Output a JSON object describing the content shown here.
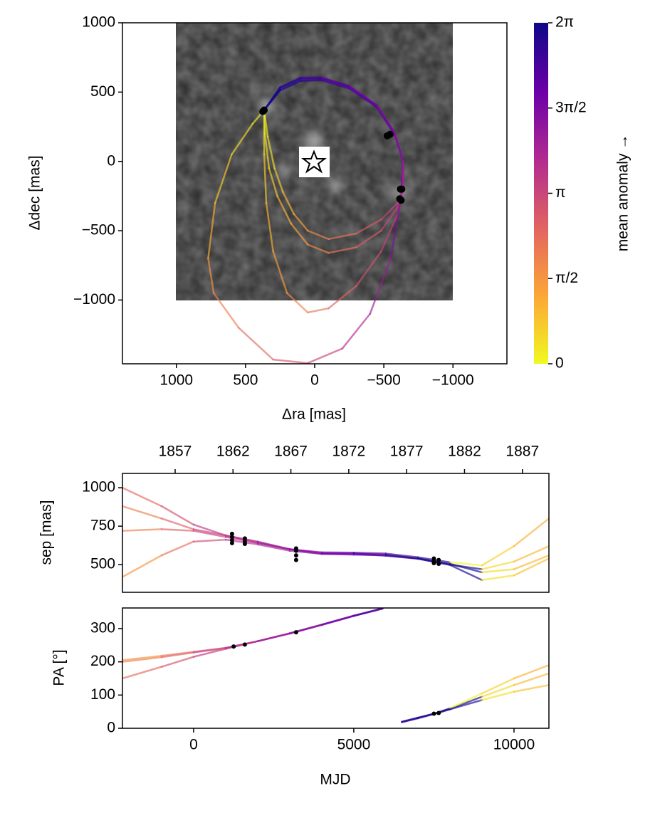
{
  "chart_data": [
    {
      "type": "orbit",
      "xlabel": "Δra [mas]",
      "ylabel": "Δdec [mas]",
      "xlim": [
        1390,
        -1390
      ],
      "ylim": [
        -1460,
        1000
      ],
      "xticks": [
        1000,
        500,
        0,
        {
          "value": -500,
          "label": "−500"
        },
        {
          "value": -1000,
          "label": "−1000"
        }
      ],
      "yticks": [
        {
          "value": -1000,
          "label": "−1000"
        },
        {
          "value": -500,
          "label": "−500"
        },
        0,
        500,
        1000
      ],
      "series": [
        {
          "x": [
            365,
            250,
            100,
            -50,
            -250,
            -450,
            -580,
            -640,
            -640,
            -600,
            -480,
            -300,
            -100,
            50,
            170,
            270,
            330,
            360,
            365
          ],
          "y": [
            370,
            530,
            600,
            600,
            540,
            400,
            200,
            0,
            -200,
            -330,
            -500,
            -620,
            -660,
            -600,
            -450,
            -250,
            -50,
            200,
            370
          ],
          "anomaly": [
            6.2,
            5.9,
            5.6,
            5.3,
            5.0,
            4.7,
            4.4,
            4.0,
            3.6,
            3.2,
            2.7,
            2.2,
            1.8,
            1.4,
            1.0,
            0.7,
            0.4,
            0.15,
            0
          ]
        },
        {
          "x": [
            365,
            250,
            100,
            -50,
            -250,
            -450,
            -580,
            -640,
            -640,
            -600,
            -480,
            -300,
            -100,
            50,
            200,
            300,
            350,
            365,
            365
          ],
          "y": [
            370,
            520,
            590,
            595,
            535,
            395,
            195,
            0,
            -200,
            -380,
            -650,
            -900,
            -1060,
            -1090,
            -950,
            -650,
            -300,
            50,
            370
          ],
          "anomaly": [
            6.2,
            5.9,
            5.6,
            5.3,
            5.0,
            4.7,
            4.4,
            4.0,
            3.6,
            3.3,
            2.9,
            2.5,
            2.2,
            1.9,
            1.5,
            1.1,
            0.7,
            0.3,
            0
          ]
        },
        {
          "x": [
            365,
            250,
            100,
            -50,
            -250,
            -450,
            -580,
            -640,
            -620,
            -550,
            -400,
            -200,
            50,
            300,
            550,
            730,
            770,
            720,
            600,
            450,
            365
          ],
          "y": [
            370,
            510,
            580,
            585,
            525,
            390,
            190,
            0,
            -280,
            -700,
            -1100,
            -1350,
            -1455,
            -1430,
            -1200,
            -950,
            -700,
            -300,
            50,
            270,
            370
          ],
          "anomaly": [
            6.25,
            6.05,
            5.85,
            5.65,
            5.45,
            5.25,
            5.05,
            4.85,
            4.6,
            4.2,
            3.7,
            3.2,
            2.8,
            2.4,
            2.0,
            1.6,
            1.2,
            0.8,
            0.45,
            0.2,
            0.05
          ]
        },
        {
          "x": [
            365,
            250,
            100,
            -50,
            -250,
            -450,
            -580,
            -640,
            -640,
            -600,
            -480,
            -300,
            -100,
            50,
            150,
            230,
            290,
            340,
            365
          ],
          "y": [
            370,
            535,
            605,
            605,
            545,
            405,
            205,
            0,
            -200,
            -300,
            -420,
            -520,
            -560,
            -500,
            -380,
            -220,
            -50,
            180,
            370
          ],
          "anomaly": [
            6.2,
            5.9,
            5.6,
            5.3,
            5.0,
            4.7,
            4.4,
            4.0,
            3.6,
            3.2,
            2.7,
            2.2,
            1.8,
            1.4,
            1.0,
            0.7,
            0.4,
            0.15,
            0
          ]
        }
      ],
      "points": {
        "x": [
          365,
          375,
          -525,
          -545,
          -620,
          -630,
          -615,
          -625
        ],
        "y": [
          370,
          360,
          185,
          195,
          -200,
          -200,
          -270,
          -280
        ]
      },
      "colorbar": {
        "label": "mean anomaly →",
        "lim": [
          0,
          6.2832
        ],
        "ticks": [
          0,
          {
            "value": 1.5708,
            "label": "π/2"
          },
          {
            "value": 3.1416,
            "label": "π"
          },
          {
            "value": 4.7124,
            "label": "3π/2"
          },
          {
            "value": 6.2832,
            "label": "2π"
          }
        ],
        "colormap": [
          "#f0f921",
          "#fca636",
          "#e16462",
          "#b12a90",
          "#6a00a8",
          "#0d0887"
        ]
      }
    },
    {
      "type": "line",
      "ylabel": "sep [mas]",
      "xlim": [
        -2220,
        11090
      ],
      "ylim": [
        320,
        1093
      ],
      "yticks": [
        500,
        750,
        1000
      ],
      "x2lim": [
        1852.45,
        1889.29
      ],
      "x2ticks": [
        1857,
        1862,
        1867,
        1872,
        1877,
        1882,
        1887
      ],
      "series": [
        {
          "x": [
            -2220,
            -1000,
            0,
            1000,
            2000,
            3000,
            4000,
            5000,
            6000,
            7000,
            8000,
            9000,
            10000,
            11090
          ],
          "values": [
            720,
            730,
            720,
            680,
            640,
            600,
            570,
            565,
            560,
            540,
            500,
            470,
            520,
            620
          ],
          "anomaly": [
            2.0,
            2.6,
            3.2,
            3.7,
            4.1,
            4.5,
            4.9,
            5.3,
            5.7,
            6.0,
            6.25,
            0.5,
            1.0,
            1.3
          ]
        },
        {
          "x": [
            -2220,
            -1000,
            0,
            1000,
            2000,
            3000,
            4000,
            5000,
            6000,
            7000,
            8000,
            9000,
            10000,
            11090
          ],
          "values": [
            1000,
            880,
            760,
            690,
            645,
            600,
            580,
            578,
            572,
            548,
            515,
            495,
            620,
            800
          ],
          "anomaly": [
            2.4,
            2.9,
            3.4,
            3.8,
            4.2,
            4.6,
            5.0,
            5.4,
            5.8,
            6.1,
            0.1,
            0.6,
            1.1,
            1.4
          ]
        },
        {
          "x": [
            -2220,
            -1000,
            0,
            1000,
            2000,
            3000,
            4000,
            5000,
            6000,
            7000,
            8000,
            9000,
            10000,
            11090
          ],
          "values": [
            420,
            560,
            650,
            662,
            632,
            590,
            570,
            570,
            558,
            538,
            498,
            400,
            430,
            540
          ],
          "anomaly": [
            1.6,
            2.3,
            3.0,
            3.6,
            4.0,
            4.4,
            4.8,
            5.2,
            5.6,
            5.9,
            6.2,
            0.4,
            0.9,
            1.2
          ]
        },
        {
          "x": [
            -2220,
            -1000,
            0,
            1000,
            2000,
            3000,
            4000,
            5000,
            6000,
            7000,
            8000,
            9000,
            10000,
            11090
          ],
          "values": [
            880,
            800,
            730,
            690,
            650,
            600,
            575,
            572,
            565,
            540,
            505,
            450,
            470,
            560
          ],
          "anomaly": [
            2.0,
            2.6,
            3.2,
            3.7,
            4.1,
            4.5,
            4.9,
            5.3,
            5.7,
            6.0,
            6.25,
            0.5,
            1.0,
            1.3
          ]
        }
      ],
      "points": {
        "x": [
          1200,
          1200,
          1200,
          1200,
          1600,
          1600,
          1600,
          3200,
          3200,
          3200,
          3200,
          7500,
          7500,
          7500,
          7650,
          7650
        ],
        "values": [
          640,
          660,
          680,
          700,
          635,
          650,
          670,
          530,
          560,
          590,
          605,
          510,
          520,
          540,
          505,
          530
        ]
      }
    },
    {
      "type": "line",
      "xlabel": "MJD",
      "ylabel": "PA [°]",
      "xlim": [
        -2220,
        11090
      ],
      "ylim": [
        0,
        362
      ],
      "xticks": [
        0,
        5000,
        10000
      ],
      "yticks": [
        0,
        100,
        200,
        300
      ],
      "series": [
        {
          "x": [
            -2220,
            -1000,
            0,
            1000,
            2000,
            3000,
            4000,
            5000,
            5900,
            5950,
            6500,
            7000,
            7550,
            8000,
            9000,
            10000,
            11090
          ],
          "values": [
            200,
            214,
            228,
            241,
            262,
            285,
            311,
            338,
            360,
            null,
            19,
            31,
            45,
            58,
            95,
            130,
            165
          ],
          "anomaly": [
            2.0,
            2.6,
            3.2,
            3.7,
            4.1,
            4.5,
            4.9,
            5.3,
            5.6,
            5.7,
            5.9,
            6.0,
            6.15,
            6.25,
            0.5,
            1.0,
            1.3
          ]
        },
        {
          "x": [
            -2220,
            -1000,
            0,
            1000,
            2000,
            3000,
            4000,
            5000,
            5900,
            5950,
            6500,
            7000,
            7550,
            8000,
            9000,
            10000,
            11090
          ],
          "values": [
            150,
            185,
            215,
            239,
            262,
            286,
            312,
            339,
            361,
            null,
            20,
            32,
            45,
            60,
            105,
            150,
            190
          ],
          "anomaly": [
            2.4,
            2.9,
            3.4,
            3.8,
            4.2,
            4.6,
            5.0,
            5.4,
            5.7,
            5.8,
            6.0,
            6.1,
            6.2,
            0.1,
            0.6,
            1.1,
            1.4
          ]
        },
        {
          "x": [
            -2220,
            -1000,
            0,
            1000,
            2000,
            3000,
            4000,
            5000,
            5900,
            5950,
            6500,
            7000,
            7550,
            8000,
            9000,
            10000,
            11090
          ],
          "values": [
            205,
            218,
            230,
            242,
            262,
            285,
            311,
            338,
            360,
            null,
            18,
            30,
            44,
            57,
            85,
            110,
            130
          ],
          "anomaly": [
            1.6,
            2.3,
            3.0,
            3.6,
            4.0,
            4.4,
            4.8,
            5.2,
            5.5,
            5.6,
            5.8,
            5.9,
            6.1,
            6.2,
            0.4,
            0.9,
            1.2
          ]
        }
      ],
      "points": {
        "x": [
          1250,
          1600,
          3200,
          7500,
          7650
        ],
        "values": [
          246,
          252,
          289,
          44,
          46
        ]
      }
    }
  ]
}
